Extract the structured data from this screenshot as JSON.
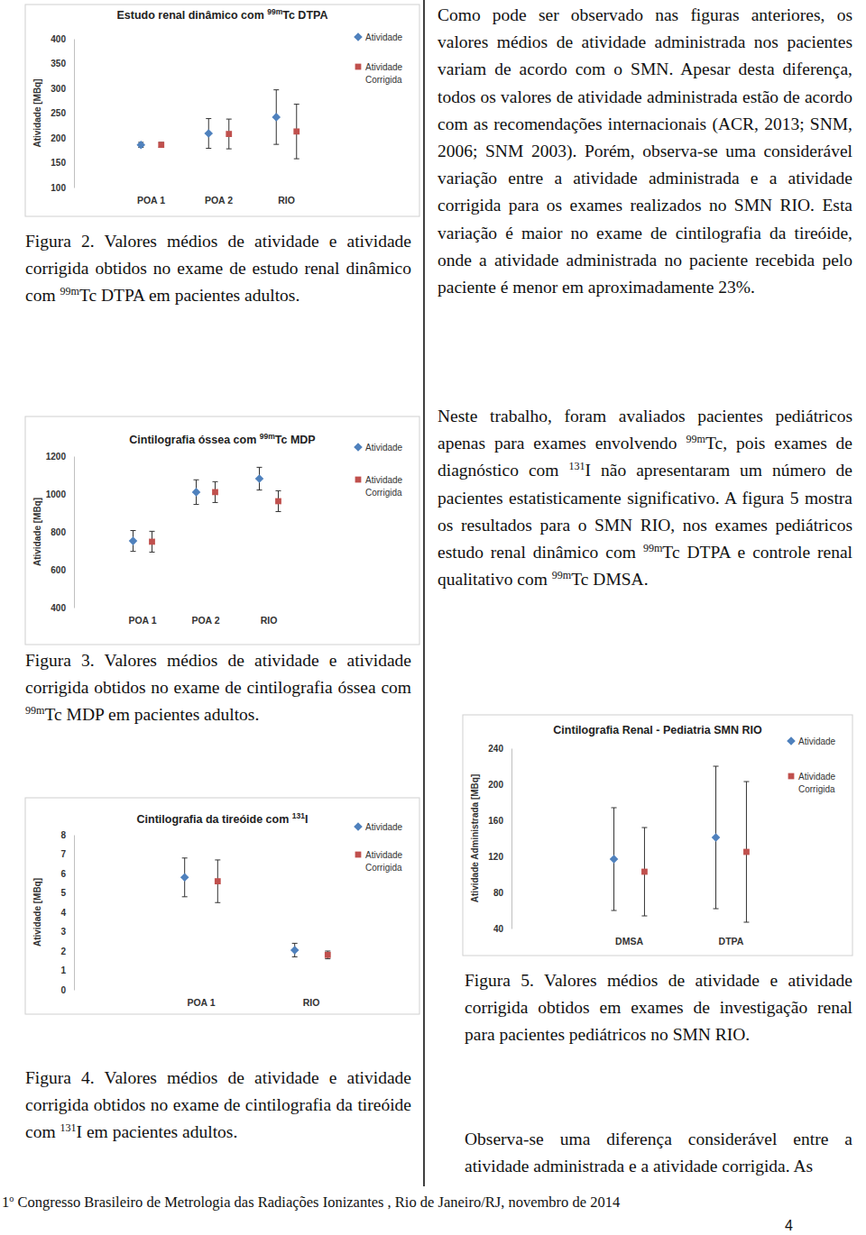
{
  "page": {
    "top_right_text": "Como pode ser observado nas figuras anteriores, os valores médios de atividade administrada nos pacientes variam de acordo com o SMN. Apesar desta diferença, todos os valores de atividade administrada estão de acordo com as recomendações internacionais (ACR, 2013; SNM, 2006; SNM 2003). Porém, observa-se uma considerável variação entre a atividade administrada e a atividade corrigida para os exames realizados no SMN RIO. Esta variação é maior no exame de cintilografia da tireóide, onde a atividade administrada no paciente recebida pelo paciente é menor em aproximadamente 23%.",
    "middle_right_text": "Neste trabalho, foram avaliados pacientes pediátricos apenas para exames envolvendo 99mTc, pois exames de diagnóstico com 131I não apresentaram um número de pacientes estatisticamente significativo. A figura 5 mostra os resultados para o SMN RIO, nos exames pediátricos estudo renal dinâmico com 99mTc DTPA e controle renal qualitativo com 99mTc DMSA.",
    "bottom_right_text": "Observa-se uma diferença considerável entre a atividade administrada e a atividade corrigida. As",
    "captions": [
      "Figura 2. Valores médios de atividade e atividade corrigida obtidos no exame de estudo renal dinâmico com 99mTc DTPA em pacientes adultos.",
      "Figura 3. Valores médios de atividade e atividade corrigida obtidos no exame de cintilografia óssea com 99mTc MDP em pacientes adultos.",
      "Figura 4. Valores médios de atividade e atividade corrigida obtidos no exame de cintilografia da tireóide com 131I em pacientes adultos.",
      "Figura 5. Valores médios de atividade e atividade corrigida obtidos em exames de investigação renal para pacientes pediátricos no SMN RIO."
    ],
    "footer": {
      "prefix": "1",
      "superscript": "o",
      "text": " Congresso Brasileiro de Metrologia das Radiações Ionizantes , Rio de Janeiro/RJ, novembro de 2014"
    },
    "page_number": "4"
  },
  "chart_data": [
    {
      "type": "scatter",
      "title": "Estudo renal dinâmico com 99mTc DTPA",
      "y_label": "Atividade [MBq]",
      "categories": [
        "POA 1",
        "POA 2",
        "RIO"
      ],
      "series": [
        {
          "name": "Atividade",
          "color": "#4f81bd",
          "marker": "diamond",
          "values": [
            186,
            209,
            242
          ],
          "error": [
            5,
            30,
            55
          ]
        },
        {
          "name": "Atividade Corrigida",
          "color": "#c0504d",
          "marker": "square",
          "values": [
            186,
            208,
            213
          ],
          "error": [
            5,
            30,
            55
          ]
        }
      ],
      "ylim": [
        100,
        400
      ],
      "yticks": [
        100,
        150,
        200,
        250,
        300,
        350,
        400
      ],
      "grid": false,
      "legend": "right"
    },
    {
      "type": "scatter",
      "title": "Cintilografia óssea com 99mTc MDP",
      "y_label": "Atividade [MBq]",
      "categories": [
        "POA 1",
        "POA 2",
        "RIO"
      ],
      "series": [
        {
          "name": "Atividade",
          "color": "#4f81bd",
          "marker": "diamond",
          "values": [
            752,
            1010,
            1081
          ],
          "error": [
            55,
            65,
            60
          ]
        },
        {
          "name": "Atividade Corrigida",
          "color": "#c0504d",
          "marker": "square",
          "values": [
            748,
            1010,
            962
          ],
          "error": [
            55,
            55,
            55
          ]
        }
      ],
      "ylim": [
        400,
        1200
      ],
      "yticks": [
        400,
        600,
        800,
        1000,
        1200
      ],
      "grid": false,
      "legend": "right"
    },
    {
      "type": "scatter",
      "title": "Cintilografia da tireóide com 131I",
      "y_label": "Atividade [MBq]",
      "categories": [
        "POA 1",
        "RIO"
      ],
      "series": [
        {
          "name": "Atividade",
          "color": "#4f81bd",
          "marker": "diamond",
          "values": [
            5.8,
            2.05
          ],
          "error": [
            1.0,
            0.35
          ]
        },
        {
          "name": "Atividade Corrigida",
          "color": "#c0504d",
          "marker": "square",
          "values": [
            5.6,
            1.8
          ],
          "error": [
            1.1,
            0.2
          ]
        }
      ],
      "ylim": [
        0,
        8
      ],
      "yticks": [
        0,
        1,
        2,
        3,
        4,
        5,
        6,
        7,
        8
      ],
      "grid": false,
      "legend": "right"
    },
    {
      "type": "scatter",
      "title": "Cintilografia Renal - Pediatria SMN RIO",
      "y_label": "Atividade Administrada [MBq]",
      "categories": [
        "DMSA",
        "DTPA"
      ],
      "series": [
        {
          "name": "Atividade",
          "color": "#4f81bd",
          "marker": "diamond",
          "values": [
            117,
            141
          ],
          "error": [
            57,
            79
          ]
        },
        {
          "name": "Atividade Corrigida",
          "color": "#c0504d",
          "marker": "square",
          "values": [
            103,
            125
          ],
          "error": [
            49,
            78
          ]
        }
      ],
      "ylim": [
        40,
        240
      ],
      "yticks": [
        40,
        80,
        120,
        160,
        200,
        240
      ],
      "grid": false,
      "legend": "right"
    }
  ]
}
